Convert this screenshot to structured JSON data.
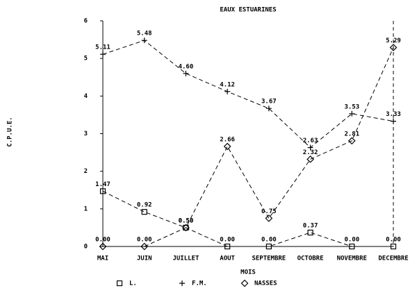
{
  "chart_data": {
    "type": "line",
    "title": "EAUX ESTUARINES",
    "y_label": "C.P.U.E.",
    "x_label": "MOIS",
    "categories": [
      "MAI",
      "JUIN",
      "JUILLET",
      "AOUT",
      "SEPTEMBRE",
      "OCTOBRE",
      "NOVEMBRE",
      "DECEMBRE"
    ],
    "series": [
      {
        "name": "L.",
        "marker": "square",
        "color": "#000000",
        "values": [
          1.47,
          0.92,
          0.5,
          0.0,
          0.0,
          0.37,
          0.0,
          0.0
        ],
        "value_labels": [
          "1.47",
          "0.92",
          "0.50",
          "0.00",
          "0.00",
          "0.37",
          "0.00",
          "0.00"
        ]
      },
      {
        "name": "F.M.",
        "marker": "plus",
        "color": "#000000",
        "values": [
          5.11,
          5.48,
          4.6,
          4.12,
          3.67,
          2.63,
          3.53,
          3.33
        ],
        "value_labels": [
          "5.11",
          "5.48",
          "4.60",
          "4.12",
          "3.67",
          "2.63",
          "3.53",
          "3.33"
        ]
      },
      {
        "name": "NASSES",
        "marker": "diamond",
        "color": "#000000",
        "values": [
          0.0,
          0.0,
          0.5,
          2.66,
          0.75,
          2.32,
          2.81,
          5.29
        ],
        "value_labels": [
          "0.00",
          "0.00",
          "0.50",
          "2.66",
          "0.75",
          "2.32",
          "2.81",
          "5.29"
        ]
      }
    ],
    "ylim": [
      0,
      6
    ],
    "yticks": [
      0,
      1,
      2,
      3,
      4,
      5,
      6
    ]
  }
}
